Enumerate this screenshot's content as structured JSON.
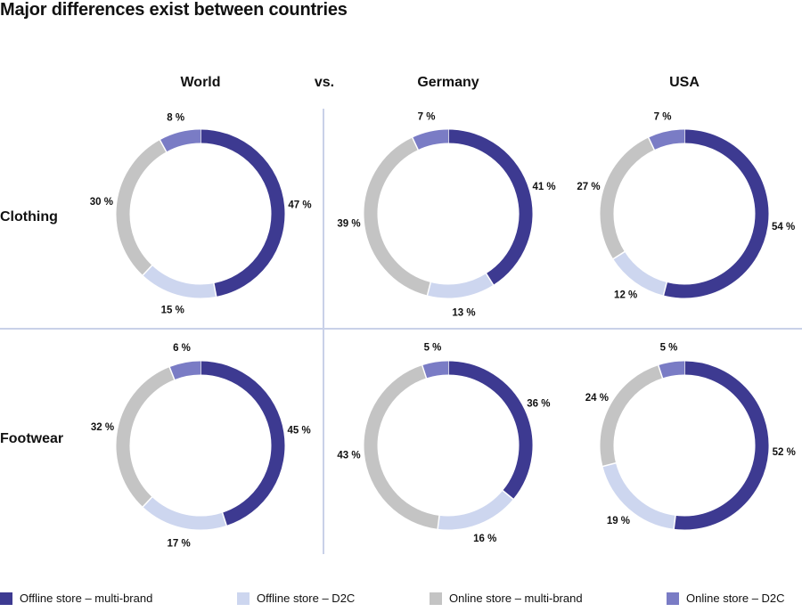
{
  "title": "Major differences exist between countries",
  "vs_label": "vs.",
  "columns": [
    "World",
    "Germany",
    "USA"
  ],
  "rows": [
    "Clothing",
    "Footwear"
  ],
  "colors": {
    "offline_multi": "#3d3a91",
    "offline_d2c": "#cdd6ef",
    "online_multi": "#c4c4c4",
    "online_d2c": "#7a7cc5",
    "divider": "#c9d1e8"
  },
  "chart_data": {
    "type": "pie",
    "style": "donut",
    "series_names": [
      "Offline store – multi-brand",
      "Offline store – D2C",
      "Online store – multi-brand",
      "Online store – D2C"
    ],
    "charts": [
      {
        "row": "Clothing",
        "column": "World",
        "values": [
          47,
          15,
          30,
          8
        ],
        "labels": [
          "47 %",
          "15 %",
          "30 %",
          "8 %"
        ]
      },
      {
        "row": "Clothing",
        "column": "Germany",
        "values": [
          41,
          13,
          39,
          7
        ],
        "labels": [
          "41 %",
          "13 %",
          "39 %",
          "7 %"
        ]
      },
      {
        "row": "Clothing",
        "column": "USA",
        "values": [
          54,
          12,
          27,
          7
        ],
        "labels": [
          "54 %",
          "12 %",
          "27 %",
          "7 %"
        ]
      },
      {
        "row": "Footwear",
        "column": "World",
        "values": [
          45,
          17,
          32,
          6
        ],
        "labels": [
          "45 %",
          "17 %",
          "32 %",
          "6 %"
        ]
      },
      {
        "row": "Footwear",
        "column": "Germany",
        "values": [
          36,
          16,
          43,
          5
        ],
        "labels": [
          "36 %",
          "16 %",
          "43 %",
          "5 %"
        ]
      },
      {
        "row": "Footwear",
        "column": "USA",
        "values": [
          52,
          19,
          24,
          5
        ],
        "labels": [
          "52 %",
          "19 %",
          "24 %",
          "5 %"
        ]
      }
    ],
    "legend_placement": "bottom"
  },
  "legend": [
    {
      "label": "Offline store – multi-brand",
      "color": "#3d3a91"
    },
    {
      "label": "Offline store – D2C",
      "color": "#cdd6ef"
    },
    {
      "label": "Online store – multi-brand",
      "color": "#c4c4c4"
    },
    {
      "label": "Online store – D2C",
      "color": "#7a7cc5"
    }
  ]
}
